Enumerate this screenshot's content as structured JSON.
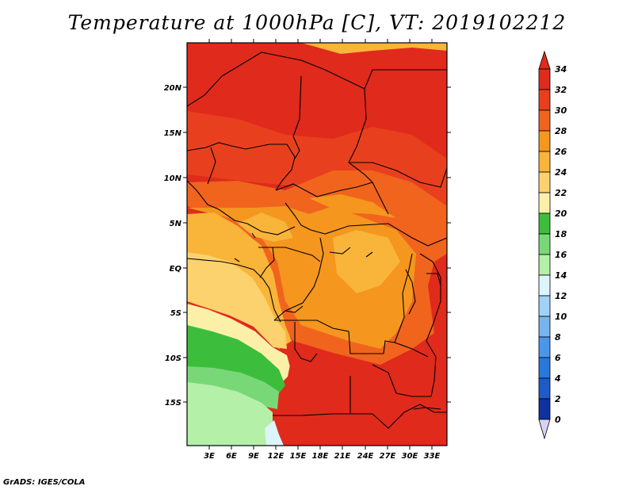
{
  "title": "Temperature at 1000hPa [C], VT: 2019102212",
  "credit": "GrADS: IGES/COLA",
  "map": {
    "lat_labels": [
      "20N",
      "15N",
      "10N",
      "5N",
      "EQ",
      "5S",
      "10S",
      "15S"
    ],
    "lon_labels": [
      "3E",
      "6E",
      "9E",
      "12E",
      "15E",
      "18E",
      "21E",
      "24E",
      "27E",
      "30E",
      "33E"
    ]
  },
  "colorbar": {
    "labels": [
      "34",
      "32",
      "30",
      "28",
      "26",
      "24",
      "22",
      "20",
      "18",
      "16",
      "14",
      "12",
      "10",
      "8",
      "6",
      "4",
      "2",
      "0"
    ],
    "colors": {
      "over": "#e02a1c",
      "c32": "#e8401e",
      "c30": "#f0641e",
      "c28": "#f5961e",
      "c26": "#f9b43a",
      "c24": "#fcd26e",
      "c22": "#fcf0a8",
      "c20": "#3cbe3c",
      "c18": "#78d878",
      "c16": "#b4f0a8",
      "c14": "#dcf4fc",
      "c12": "#a0d2f8",
      "c10": "#78b4f0",
      "c8": "#4a96ec",
      "c6": "#2a78dc",
      "c4": "#1e5ac8",
      "c2": "#0f32a0",
      "c0": "#0a0a6e",
      "under": "#d8d4f4"
    }
  }
}
